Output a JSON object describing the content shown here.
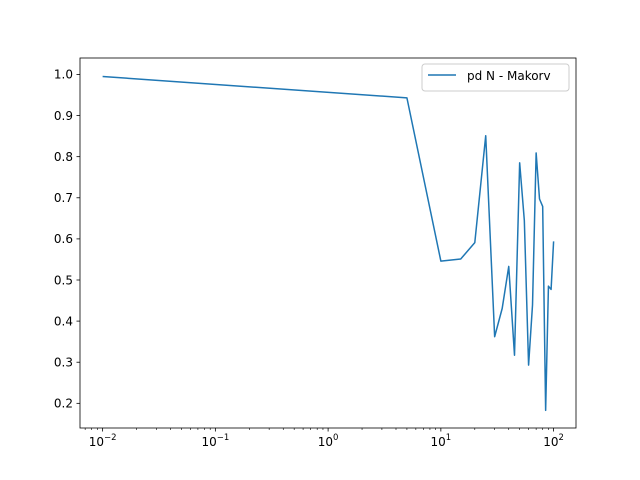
{
  "chart_data": {
    "type": "line",
    "title": "",
    "xlabel": "",
    "ylabel": "",
    "xscale": "log",
    "xlim": [
      0.0063,
      158
    ],
    "ylim": [
      0.14,
      1.04
    ],
    "grid": false,
    "legend_position": "top-right",
    "x_ticks": [
      {
        "value": 0.01,
        "base": "10",
        "exp": "−2"
      },
      {
        "value": 0.1,
        "base": "10",
        "exp": "−1"
      },
      {
        "value": 1,
        "base": "10",
        "exp": "0"
      },
      {
        "value": 10,
        "base": "10",
        "exp": "1"
      },
      {
        "value": 100,
        "base": "10",
        "exp": "2"
      }
    ],
    "y_ticks": [
      {
        "value": 0.2,
        "label": "0.2"
      },
      {
        "value": 0.3,
        "label": "0.3"
      },
      {
        "value": 0.4,
        "label": "0.4"
      },
      {
        "value": 0.5,
        "label": "0.5"
      },
      {
        "value": 0.6,
        "label": "0.6"
      },
      {
        "value": 0.7,
        "label": "0.7"
      },
      {
        "value": 0.8,
        "label": "0.8"
      },
      {
        "value": 0.9,
        "label": "0.9"
      },
      {
        "value": 1.0,
        "label": "1.0"
      }
    ],
    "series": [
      {
        "name": "pd N - Makorv",
        "color": "#1f77b4",
        "x": [
          0.01,
          5,
          10,
          15,
          20,
          25,
          30,
          35,
          40,
          45,
          50,
          55,
          60,
          65,
          70,
          75,
          80,
          85,
          90,
          95,
          100
        ],
        "y": [
          0.995,
          0.943,
          0.546,
          0.551,
          0.591,
          0.851,
          0.362,
          0.431,
          0.533,
          0.317,
          0.785,
          0.645,
          0.293,
          0.439,
          0.809,
          0.697,
          0.679,
          0.183,
          0.485,
          0.477,
          0.594
        ]
      }
    ]
  }
}
